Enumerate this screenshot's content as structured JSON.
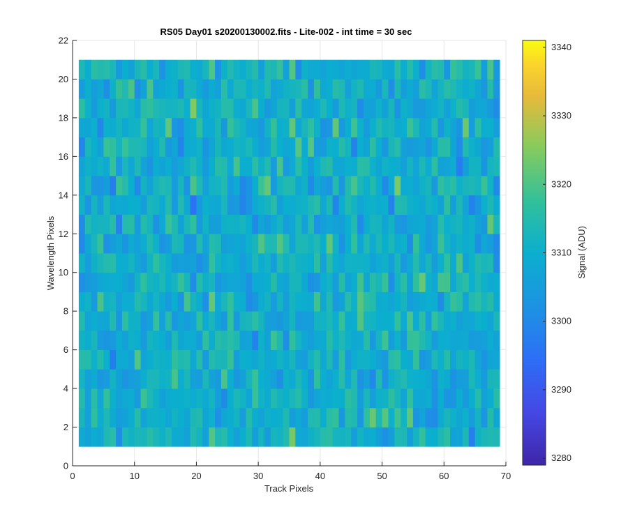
{
  "chart_data": {
    "type": "heatmap",
    "title": "RS05 Day01  s20200130002.fits - Lite-002 - int time = 30 sec",
    "xlabel": "Track Pixels",
    "ylabel": "Wavelength Pixels",
    "xlim": [
      0,
      70
    ],
    "ylim": [
      0,
      22
    ],
    "x_ticks": [
      "0",
      "10",
      "20",
      "30",
      "40",
      "50",
      "60",
      "70"
    ],
    "y_ticks": [
      "0",
      "2",
      "4",
      "6",
      "8",
      "10",
      "12",
      "14",
      "16",
      "18",
      "20",
      "22"
    ],
    "x_range": [
      1,
      69
    ],
    "y_range": [
      1,
      21
    ],
    "n_cols": 68,
    "n_rows": 20,
    "grid": true,
    "colormap": "parula",
    "colorbar": {
      "label": "Signal (ADU)",
      "min": 3279,
      "max": 3341,
      "ticks": [
        "3280",
        "3290",
        "3300",
        "3310",
        "3320",
        "3330",
        "3340"
      ]
    }
  }
}
